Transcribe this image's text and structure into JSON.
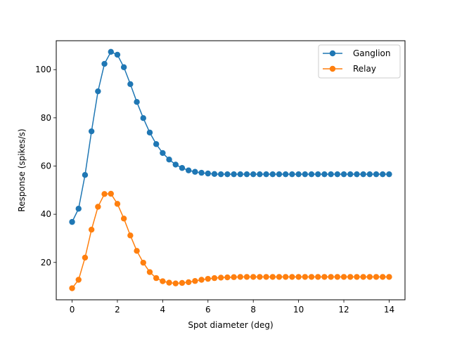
{
  "chart_data": {
    "type": "line",
    "xlabel": "Spot diameter (deg)",
    "ylabel": "Response (spikes/s)",
    "xlim": [
      -0.7,
      14.7
    ],
    "ylim": [
      4.5,
      112
    ],
    "xticks": [
      0,
      2,
      4,
      6,
      8,
      10,
      12,
      14
    ],
    "yticks": [
      20,
      40,
      60,
      80,
      100
    ],
    "grid": false,
    "legend_position": "top-right",
    "x": [
      0,
      0.2857,
      0.5714,
      0.8571,
      1.1429,
      1.4286,
      1.7143,
      2.0,
      2.2857,
      2.5714,
      2.8571,
      3.1429,
      3.4286,
      3.7143,
      4.0,
      4.2857,
      4.5714,
      4.8571,
      5.1429,
      5.4286,
      5.7143,
      6.0,
      6.2857,
      6.5714,
      6.8571,
      7.1429,
      7.4286,
      7.7143,
      8.0,
      8.2857,
      8.5714,
      8.8571,
      9.1429,
      9.4286,
      9.7143,
      10.0,
      10.2857,
      10.5714,
      10.8571,
      11.1429,
      11.4286,
      11.7143,
      12.0,
      12.2857,
      12.5714,
      12.8571,
      13.1429,
      13.4286,
      13.7143,
      14.0
    ],
    "series": [
      {
        "name": "Ganglion",
        "color": "#1f77b4",
        "values": [
          36.8,
          42.3,
          56.3,
          74.4,
          91.0,
          102.4,
          107.4,
          106.2,
          101.0,
          94.0,
          86.6,
          79.9,
          73.9,
          69.1,
          65.4,
          62.7,
          60.6,
          59.2,
          58.2,
          57.6,
          57.2,
          56.9,
          56.7,
          56.6,
          56.6,
          56.6,
          56.6,
          56.6,
          56.6,
          56.6,
          56.6,
          56.6,
          56.6,
          56.6,
          56.6,
          56.6,
          56.6,
          56.6,
          56.6,
          56.6,
          56.6,
          56.6,
          56.6,
          56.6,
          56.6,
          56.6,
          56.6,
          56.6,
          56.6,
          56.6
        ]
      },
      {
        "name": "Relay",
        "color": "#ff7f0e",
        "values": [
          9.3,
          12.8,
          22.0,
          33.6,
          43.1,
          48.4,
          48.5,
          44.3,
          38.2,
          31.2,
          24.8,
          19.9,
          16.0,
          13.5,
          12.2,
          11.6,
          11.3,
          11.5,
          11.8,
          12.3,
          12.8,
          13.2,
          13.5,
          13.7,
          13.8,
          13.9,
          14.0,
          14.0,
          14.0,
          14.0,
          14.0,
          14.0,
          14.0,
          14.0,
          14.0,
          14.0,
          14.0,
          14.0,
          14.0,
          14.0,
          14.0,
          14.0,
          14.0,
          14.0,
          14.0,
          14.0,
          14.0,
          14.0,
          14.0,
          14.0
        ]
      }
    ]
  }
}
